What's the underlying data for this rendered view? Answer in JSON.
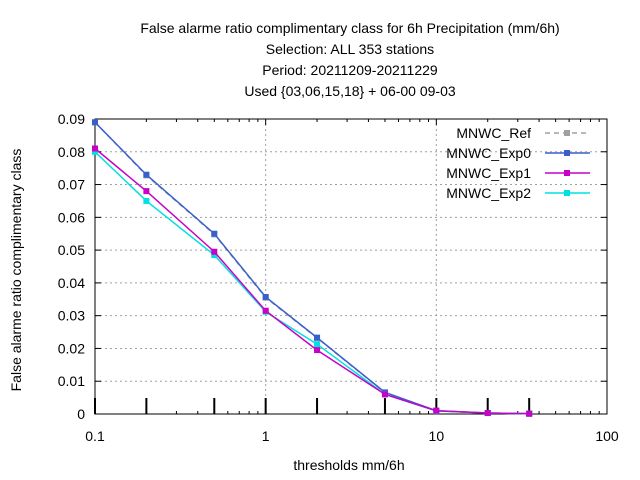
{
  "chart_data": {
    "type": "line",
    "title_lines": [
      "False alarme ratio complimentary class  for 6h Precipitation (mm/6h)",
      "Selection: ALL    353 stations",
      "Period: 20211209-20211229",
      "Used {03,06,15,18} + 06-00 09-03"
    ],
    "xlabel": "thresholds mm/6h",
    "ylabel": "False alarme ratio complimentary class",
    "x_scale": "log",
    "xlim": [
      0.1,
      100
    ],
    "ylim": [
      0,
      0.09
    ],
    "x_ticks": [
      "0.1",
      "1",
      "10",
      "100"
    ],
    "y_ticks": [
      "0",
      "0.01",
      "0.02",
      "0.03",
      "0.04",
      "0.05",
      "0.06",
      "0.07",
      "0.08",
      "0.09"
    ],
    "grid": true,
    "legend_position": "top-right",
    "x": [
      0.1,
      0.2,
      0.5,
      1,
      2,
      5,
      10,
      20,
      35
    ],
    "series": [
      {
        "name": "MNWC_Ref",
        "color": "#a0a0a0",
        "dashed": true,
        "values": [
          0.089,
          0.0728,
          0.0548,
          0.0355,
          0.0232,
          0.0065,
          0.001,
          0.0003,
          0.0001
        ]
      },
      {
        "name": "MNWC_Exp0",
        "color": "#3a5fcd",
        "dashed": false,
        "values": [
          0.089,
          0.073,
          0.055,
          0.0357,
          0.0233,
          0.0066,
          0.001,
          0.0003,
          0.0001
        ]
      },
      {
        "name": "MNWC_Exp1",
        "color": "#c800c8",
        "dashed": false,
        "values": [
          0.081,
          0.068,
          0.0495,
          0.0315,
          0.0195,
          0.006,
          0.001,
          0.0003,
          0.0001
        ]
      },
      {
        "name": "MNWC_Exp2",
        "color": "#00e0e0",
        "dashed": false,
        "values": [
          0.08,
          0.065,
          0.0485,
          0.0312,
          0.0213,
          0.006,
          0.0009,
          0.0003,
          0.0001
        ]
      }
    ],
    "ticks_at_bottom": [
      0.1,
      0.2,
      0.5,
      1,
      2,
      5,
      10,
      20,
      35
    ]
  }
}
